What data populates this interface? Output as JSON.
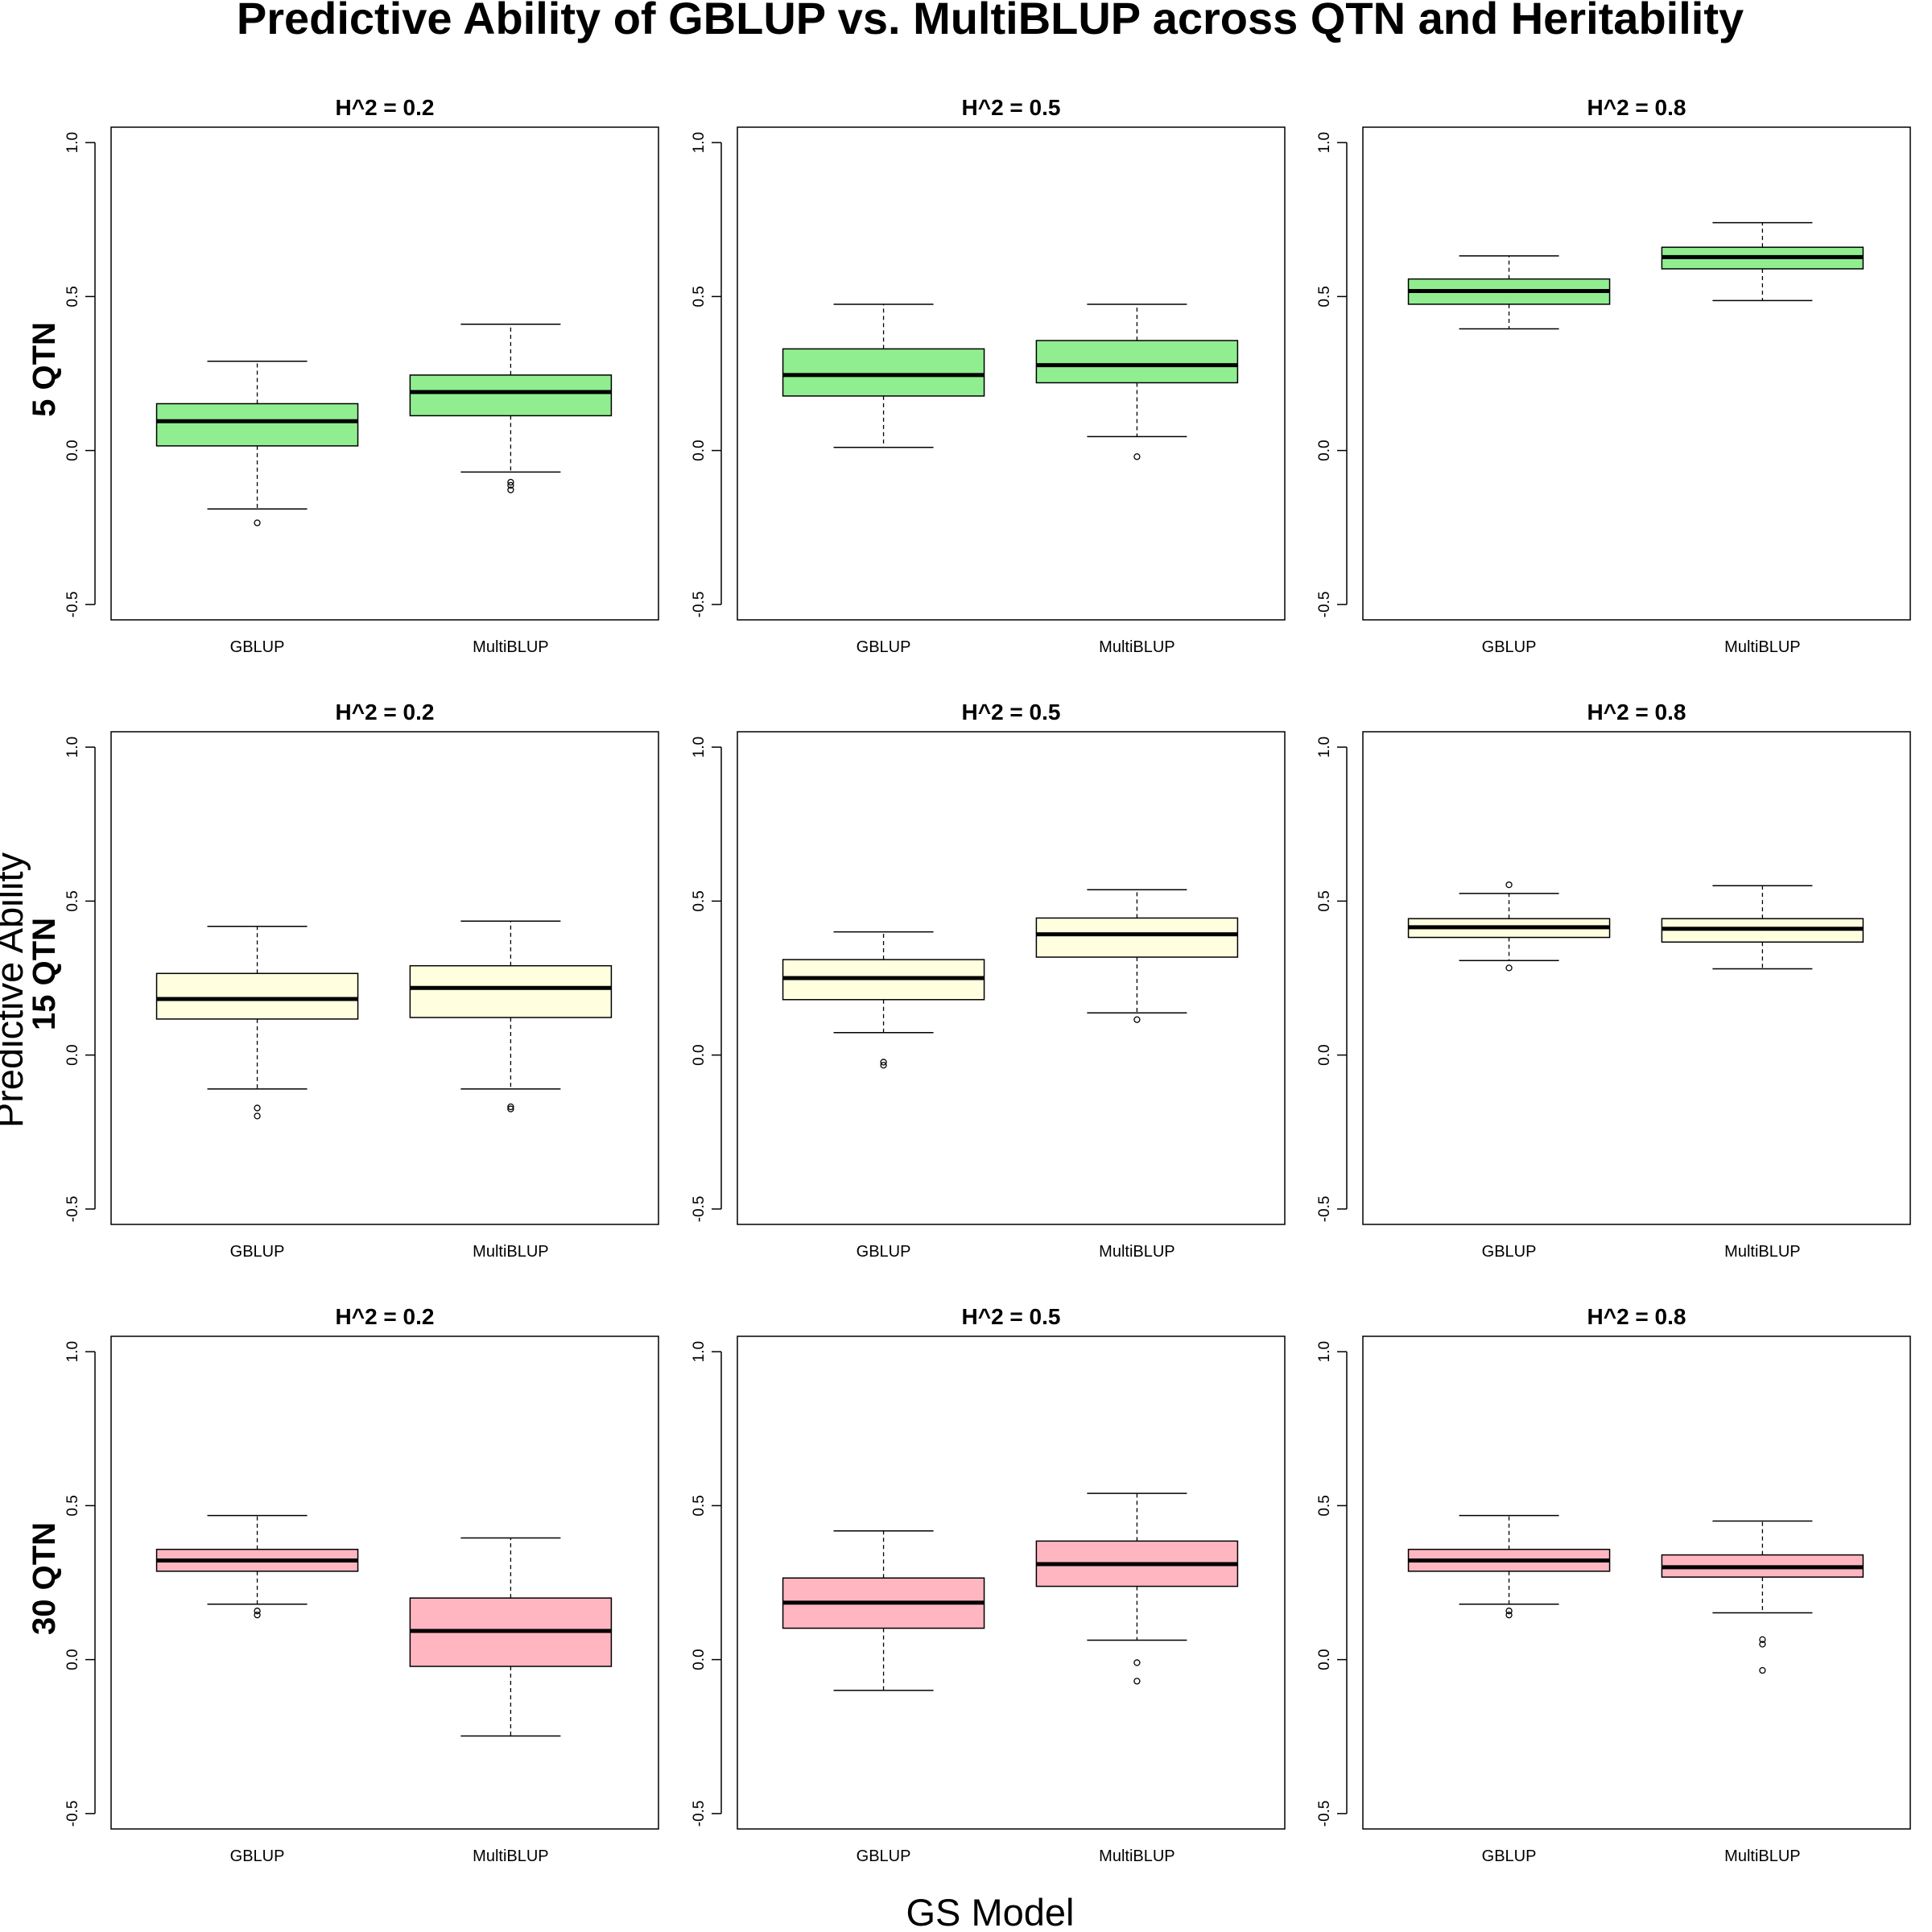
{
  "chart_data": {
    "type": "boxplot",
    "title": "Predictive Ability of GBLUP vs. MultiBLUP across QTN and Heritability",
    "xlabel": "GS Model",
    "ylabel": "Predictive Ability",
    "categories": [
      "GBLUP",
      "MultiBLUP"
    ],
    "y_ticks": [
      "-0.5",
      "0.0",
      "0.5",
      "1.0"
    ],
    "ylim": [
      -0.55,
      1.05
    ],
    "colors": {
      "5 QTN": "#90EE90",
      "15 QTN": "#FFFFE0",
      "30 QTN": "#FFB6C1"
    },
    "panels": [
      {
        "row": "5 QTN",
        "col": "H^2 = 0.2",
        "title": "H^2 = 0.2",
        "color": "#90EE90",
        "boxes": [
          {
            "category": "GBLUP",
            "min": -0.19,
            "q1": 0.015,
            "median": 0.095,
            "q3": 0.152,
            "max": 0.29,
            "outliers": [
              -0.235
            ]
          },
          {
            "category": "MultiBLUP",
            "min": -0.07,
            "q1": 0.113,
            "median": 0.19,
            "q3": 0.245,
            "max": 0.41,
            "outliers": [
              -0.103,
              -0.113,
              -0.128
            ]
          }
        ]
      },
      {
        "row": "5 QTN",
        "col": "H^2 = 0.5",
        "title": "H^2 = 0.5",
        "color": "#90EE90",
        "boxes": [
          {
            "category": "GBLUP",
            "min": 0.01,
            "q1": 0.177,
            "median": 0.245,
            "q3": 0.33,
            "max": 0.475,
            "outliers": []
          },
          {
            "category": "MultiBLUP",
            "min": 0.045,
            "q1": 0.22,
            "median": 0.277,
            "q3": 0.357,
            "max": 0.475,
            "outliers": [
              -0.02
            ]
          }
        ]
      },
      {
        "row": "5 QTN",
        "col": "H^2 = 0.8",
        "title": "H^2 = 0.8",
        "color": "#90EE90",
        "boxes": [
          {
            "category": "GBLUP",
            "min": 0.395,
            "q1": 0.475,
            "median": 0.518,
            "q3": 0.557,
            "max": 0.632,
            "outliers": []
          },
          {
            "category": "MultiBLUP",
            "min": 0.487,
            "q1": 0.59,
            "median": 0.628,
            "q3": 0.66,
            "max": 0.74,
            "outliers": []
          }
        ]
      },
      {
        "row": "15 QTN",
        "col": "H^2 = 0.2",
        "title": "H^2 = 0.2",
        "color": "#FFFFE0",
        "boxes": [
          {
            "category": "GBLUP",
            "min": -0.11,
            "q1": 0.117,
            "median": 0.182,
            "q3": 0.265,
            "max": 0.418,
            "outliers": [
              -0.172,
              -0.198
            ]
          },
          {
            "category": "MultiBLUP",
            "min": -0.11,
            "q1": 0.122,
            "median": 0.218,
            "q3": 0.29,
            "max": 0.435,
            "outliers": [
              -0.168,
              -0.175
            ]
          }
        ]
      },
      {
        "row": "15 QTN",
        "col": "H^2 = 0.5",
        "title": "H^2 = 0.5",
        "color": "#FFFFE0",
        "boxes": [
          {
            "category": "GBLUP",
            "min": 0.073,
            "q1": 0.18,
            "median": 0.25,
            "q3": 0.31,
            "max": 0.4,
            "outliers": [
              -0.023,
              -0.033
            ]
          },
          {
            "category": "MultiBLUP",
            "min": 0.137,
            "q1": 0.318,
            "median": 0.392,
            "q3": 0.445,
            "max": 0.537,
            "outliers": [
              0.115
            ]
          }
        ]
      },
      {
        "row": "15 QTN",
        "col": "H^2 = 0.8",
        "title": "H^2 = 0.8",
        "color": "#FFFFE0",
        "boxes": [
          {
            "category": "GBLUP",
            "min": 0.307,
            "q1": 0.382,
            "median": 0.415,
            "q3": 0.443,
            "max": 0.525,
            "outliers": [
              0.553,
              0.283
            ]
          },
          {
            "category": "MultiBLUP",
            "min": 0.28,
            "q1": 0.367,
            "median": 0.41,
            "q3": 0.443,
            "max": 0.55,
            "outliers": []
          }
        ]
      },
      {
        "row": "30 QTN",
        "col": "H^2 = 0.2",
        "title": "H^2 = 0.2",
        "color": "#FFB6C1",
        "boxes": [
          {
            "category": "GBLUP",
            "min": 0.18,
            "q1": 0.287,
            "median": 0.322,
            "q3": 0.358,
            "max": 0.468,
            "outliers": [
              0.158,
              0.145
            ]
          },
          {
            "category": "MultiBLUP",
            "min": -0.248,
            "q1": -0.022,
            "median": 0.093,
            "q3": 0.2,
            "max": 0.395,
            "outliers": []
          }
        ]
      },
      {
        "row": "30 QTN",
        "col": "H^2 = 0.5",
        "title": "H^2 = 0.5",
        "color": "#FFB6C1",
        "boxes": [
          {
            "category": "GBLUP",
            "min": -0.1,
            "q1": 0.102,
            "median": 0.185,
            "q3": 0.265,
            "max": 0.418,
            "outliers": []
          },
          {
            "category": "MultiBLUP",
            "min": 0.063,
            "q1": 0.238,
            "median": 0.31,
            "q3": 0.385,
            "max": 0.54,
            "outliers": [
              -0.01,
              -0.07
            ]
          }
        ]
      },
      {
        "row": "30 QTN",
        "col": "H^2 = 0.8",
        "title": "H^2 = 0.8",
        "color": "#FFB6C1",
        "boxes": [
          {
            "category": "GBLUP",
            "min": 0.18,
            "q1": 0.287,
            "median": 0.322,
            "q3": 0.358,
            "max": 0.468,
            "outliers": [
              0.158,
              0.145
            ]
          },
          {
            "category": "MultiBLUP",
            "min": 0.152,
            "q1": 0.268,
            "median": 0.3,
            "q3": 0.34,
            "max": 0.45,
            "outliers": [
              0.065,
              0.05,
              -0.035
            ]
          }
        ]
      }
    ]
  }
}
